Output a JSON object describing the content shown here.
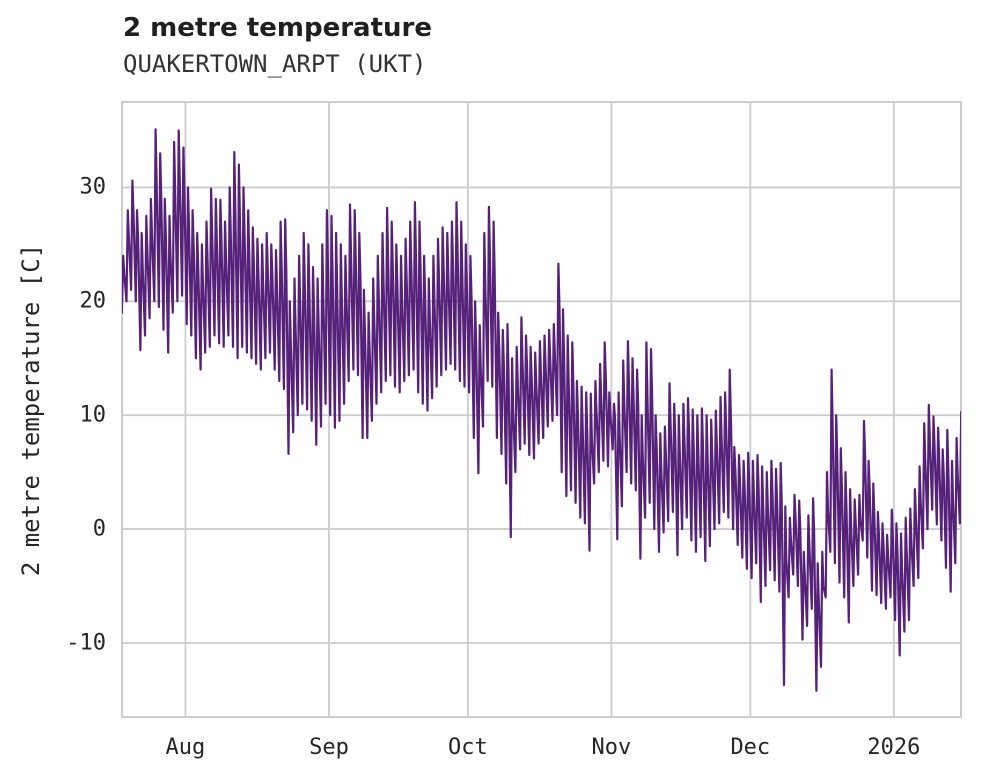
{
  "header": {
    "title": "2 metre temperature",
    "subtitle": "QUAKERTOWN_ARPT (UKT)"
  },
  "chart_data": {
    "type": "line",
    "title": "2 metre temperature",
    "subtitle": "QUAKERTOWN_ARPT (UKT)",
    "xlabel": "",
    "ylabel": "2 metre temperature [C]",
    "grid": true,
    "legend_position": "none",
    "line_color": "#552179",
    "grid_color": "#cdcdcd",
    "background_color": "#ffffff",
    "text_color": "#262626",
    "ylim": [
      -16.5,
      37.5
    ],
    "y_ticks": [
      30,
      20,
      10,
      0,
      -10
    ],
    "x_axis": {
      "unit": "day index of sampled series (0 = first day shown, mid-July)",
      "xlim": [
        0.3,
        181.5
      ],
      "ticks": [
        {
          "label": "Aug",
          "day": 14
        },
        {
          "label": "Sep",
          "day": 45
        },
        {
          "label": "Oct",
          "day": 75
        },
        {
          "label": "Nov",
          "day": 106
        },
        {
          "label": "Dec",
          "day": 136
        },
        {
          "label": "2026",
          "day": 167
        }
      ]
    },
    "series_description": "dense hourly 2 m temperature trace, represented here by its daily max/min envelope (deg C)",
    "daily_max": [
      24,
      28,
      30.6,
      28,
      26,
      27.5,
      29,
      35.1,
      33,
      29,
      27.5,
      34,
      35,
      33.5,
      30,
      28,
      26,
      25,
      27,
      29.9,
      29,
      28.9,
      27,
      30,
      33.1,
      32,
      30,
      28,
      26.5,
      25.5,
      25,
      26,
      25,
      24.5,
      27,
      27.2,
      20,
      22,
      24,
      26,
      25,
      23,
      22,
      25,
      28,
      27.5,
      26,
      25,
      24,
      28.5,
      28,
      26,
      21,
      19,
      22,
      24,
      26,
      28.2,
      27,
      25,
      24,
      25.5,
      27,
      28.7,
      27,
      24,
      22,
      24,
      25.5,
      26.5,
      26,
      27,
      28.7,
      27,
      25,
      24,
      20,
      17.9,
      26,
      28.3,
      27,
      19,
      17.5,
      18,
      15,
      16,
      18.6,
      17,
      16,
      15.5,
      16.5,
      17,
      17.5,
      18,
      23.3,
      19.3,
      17,
      16.4,
      13,
      12.5,
      12,
      11.9,
      13,
      14.5,
      16.4,
      12,
      11,
      12,
      14.8,
      16.5,
      15,
      14,
      10,
      16.4,
      15.8,
      10,
      8.4,
      9,
      12.8,
      11,
      10,
      11,
      11.5,
      10.5,
      10,
      10.6,
      10,
      9.6,
      10.4,
      11.6,
      12,
      14,
      7.2,
      6.5,
      6,
      6.7,
      6,
      6.5,
      5.5,
      5,
      6,
      5.3,
      5.8,
      2,
      1,
      3,
      2.5,
      -2,
      1.2,
      2.7,
      -3,
      -2,
      5,
      14,
      10,
      7.1,
      5,
      3.5,
      2.6,
      3,
      9.5,
      6,
      4,
      1.5,
      0.5,
      -0.5,
      1.7,
      0.5,
      -0.4,
      1,
      1.8,
      3.5,
      5.5,
      9.3,
      10.9,
      9.9,
      8.9,
      7,
      8.7,
      6,
      8,
      10.3
    ],
    "daily_min": [
      19,
      20,
      21,
      20,
      15.7,
      17,
      18.5,
      20,
      19.5,
      17.5,
      15.5,
      19,
      20,
      20.5,
      18,
      17,
      15,
      14,
      15.5,
      16,
      17,
      16.3,
      16,
      17,
      16,
      15,
      16,
      15.5,
      15,
      14.5,
      14,
      15,
      15.5,
      14,
      13,
      12.3,
      6.6,
      8.5,
      10,
      11,
      10.5,
      9.5,
      7.4,
      9,
      11,
      10,
      8.9,
      9.5,
      11,
      13,
      14,
      13.5,
      8,
      8,
      9.5,
      11,
      12,
      13,
      13.5,
      12.5,
      12,
      13,
      13.5,
      14,
      12,
      11,
      10.4,
      11.5,
      12.5,
      13.5,
      14,
      14.5,
      14,
      13,
      12.5,
      12,
      8,
      4.9,
      9,
      13,
      12.5,
      8,
      6.6,
      4,
      -0.7,
      5,
      7,
      7.5,
      6.5,
      6.2,
      7.5,
      8,
      9,
      9.5,
      10,
      5,
      2.9,
      3.4,
      2.3,
      1,
      0.5,
      -1.9,
      4,
      5,
      6,
      5.5,
      7,
      -0.9,
      2,
      5,
      4,
      3.4,
      -2.6,
      1,
      2.3,
      0,
      -2,
      -0.3,
      0.7,
      1.5,
      -2.3,
      0,
      1,
      -1,
      -2,
      -0.7,
      -2.8,
      -1.5,
      0,
      0.5,
      1.5,
      1,
      0,
      -1.4,
      -2.5,
      -3.5,
      -4.3,
      -3,
      -6.4,
      -5,
      -3.6,
      -4.5,
      -5.5,
      -13.7,
      -6,
      -4,
      -5,
      -9.7,
      -8.5,
      -7,
      -14.2,
      -12.1,
      -6,
      -2,
      -3,
      -4.7,
      -6,
      -8.2,
      -5,
      -4,
      -1,
      -2.5,
      -5.4,
      -5.8,
      -6.5,
      -7,
      -6,
      -8,
      -11.1,
      -9,
      -8,
      -5,
      -4.3,
      -1.7,
      0,
      1.7,
      0.4,
      -1,
      -3.4,
      -5.5,
      -3,
      0.5
    ]
  }
}
